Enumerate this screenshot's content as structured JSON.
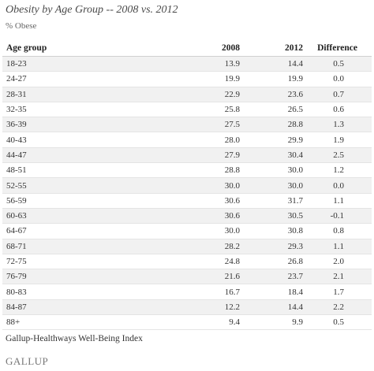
{
  "title": "Obesity by Age Group -- 2008 vs. 2012",
  "subtitle": "% Obese",
  "table": {
    "headers": [
      "Age group",
      "2008",
      "2012",
      "Difference"
    ],
    "rows": [
      [
        "18-23",
        "13.9",
        "14.4",
        "0.5"
      ],
      [
        "24-27",
        "19.9",
        "19.9",
        "0.0"
      ],
      [
        "28-31",
        "22.9",
        "23.6",
        "0.7"
      ],
      [
        "32-35",
        "25.8",
        "26.5",
        "0.6"
      ],
      [
        "36-39",
        "27.5",
        "28.8",
        "1.3"
      ],
      [
        "40-43",
        "28.0",
        "29.9",
        "1.9"
      ],
      [
        "44-47",
        "27.9",
        "30.4",
        "2.5"
      ],
      [
        "48-51",
        "28.8",
        "30.0",
        "1.2"
      ],
      [
        "52-55",
        "30.0",
        "30.0",
        "0.0"
      ],
      [
        "56-59",
        "30.6",
        "31.7",
        "1.1"
      ],
      [
        "60-63",
        "30.6",
        "30.5",
        "-0.1"
      ],
      [
        "64-67",
        "30.0",
        "30.8",
        "0.8"
      ],
      [
        "68-71",
        "28.2",
        "29.3",
        "1.1"
      ],
      [
        "72-75",
        "24.8",
        "26.8",
        "2.0"
      ],
      [
        "76-79",
        "21.6",
        "23.7",
        "2.1"
      ],
      [
        "80-83",
        "16.7",
        "18.4",
        "1.7"
      ],
      [
        "84-87",
        "12.2",
        "14.4",
        "2.2"
      ],
      [
        "88+",
        "9.4",
        "9.9",
        "0.5"
      ]
    ]
  },
  "source": "Gallup-Healthways Well-Being Index",
  "logo": "GALLUP",
  "colors": {
    "stripe": "#f1f1f1",
    "text": "#333333"
  }
}
